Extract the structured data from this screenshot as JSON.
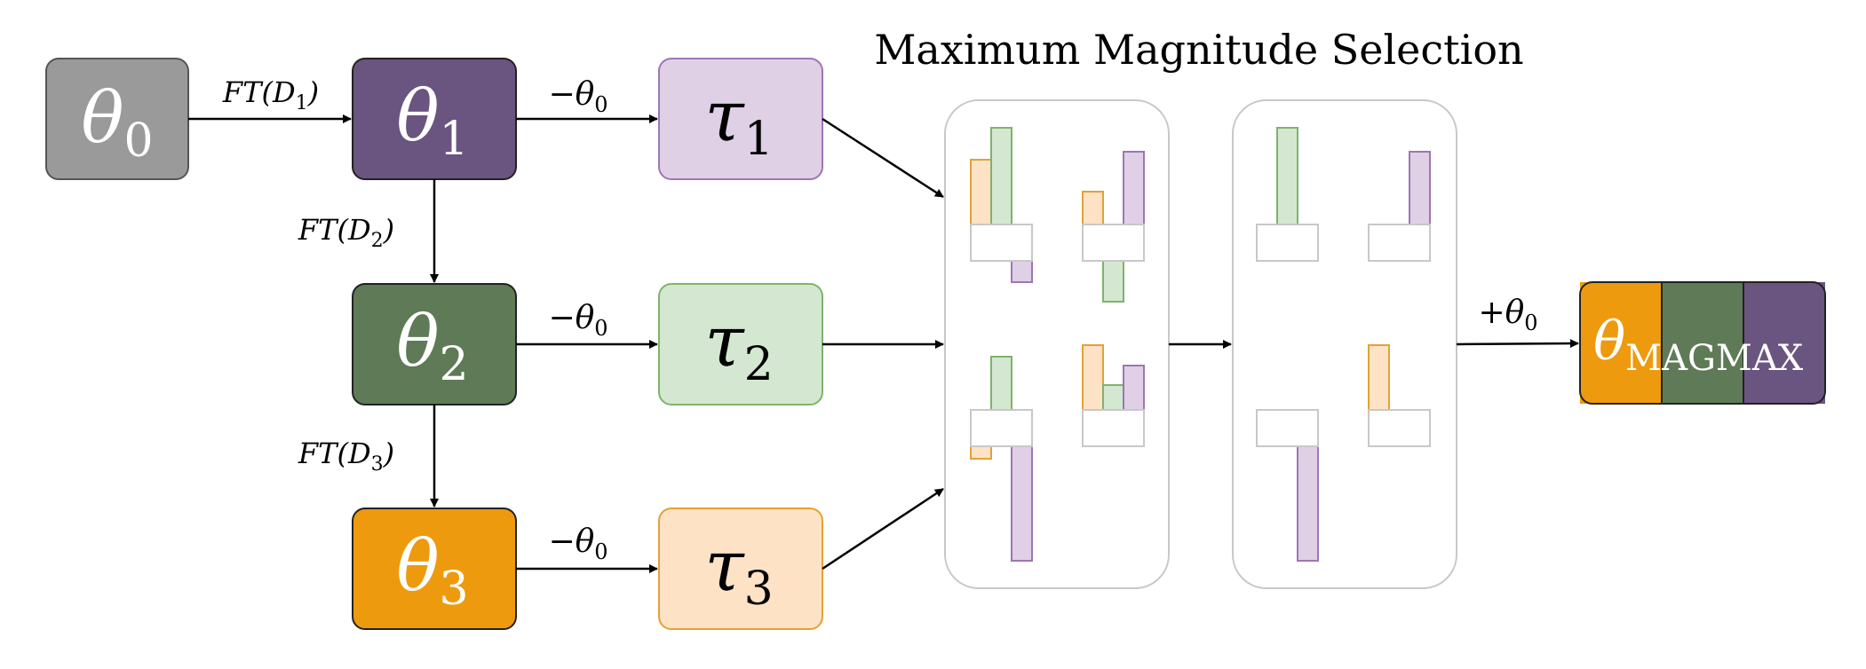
{
  "title": "Maximum Magnitude Selection",
  "nodes": {
    "theta0": {
      "symbol": "θ",
      "sub": "0"
    },
    "theta1": {
      "symbol": "θ",
      "sub": "1"
    },
    "theta2": {
      "symbol": "θ",
      "sub": "2"
    },
    "theta3": {
      "symbol": "θ",
      "sub": "3"
    },
    "tau1": {
      "symbol": "τ",
      "sub": "1"
    },
    "tau2": {
      "symbol": "τ",
      "sub": "2"
    },
    "tau3": {
      "symbol": "τ",
      "sub": "3"
    },
    "magmax": {
      "symbol": "θ",
      "sub": "MAGMAX"
    }
  },
  "edges": {
    "ft1": {
      "prefix": "FT(D",
      "sub": "1",
      "suffix": ")"
    },
    "ft2": {
      "prefix": "FT(D",
      "sub": "2",
      "suffix": ")"
    },
    "ft3": {
      "prefix": "FT(D",
      "sub": "3",
      "suffix": ")"
    },
    "minus1": {
      "prefix": "−θ",
      "sub": "0"
    },
    "minus2": {
      "prefix": "−θ",
      "sub": "0"
    },
    "minus3": {
      "prefix": "−θ",
      "sub": "0"
    },
    "plus": {
      "prefix": "+θ",
      "sub": "0"
    }
  },
  "colors": {
    "gray": "#9a9a9a",
    "purple": "#6a5480",
    "green": "#5f7a56",
    "orange": "#ee9a0e",
    "light_purple": "#dfd0e6",
    "light_green": "#d4e8d1",
    "light_orange": "#fde2c6",
    "purple_stroke": "#9d76b4",
    "green_stroke": "#7fb36a",
    "orange_stroke": "#e2a235"
  }
}
